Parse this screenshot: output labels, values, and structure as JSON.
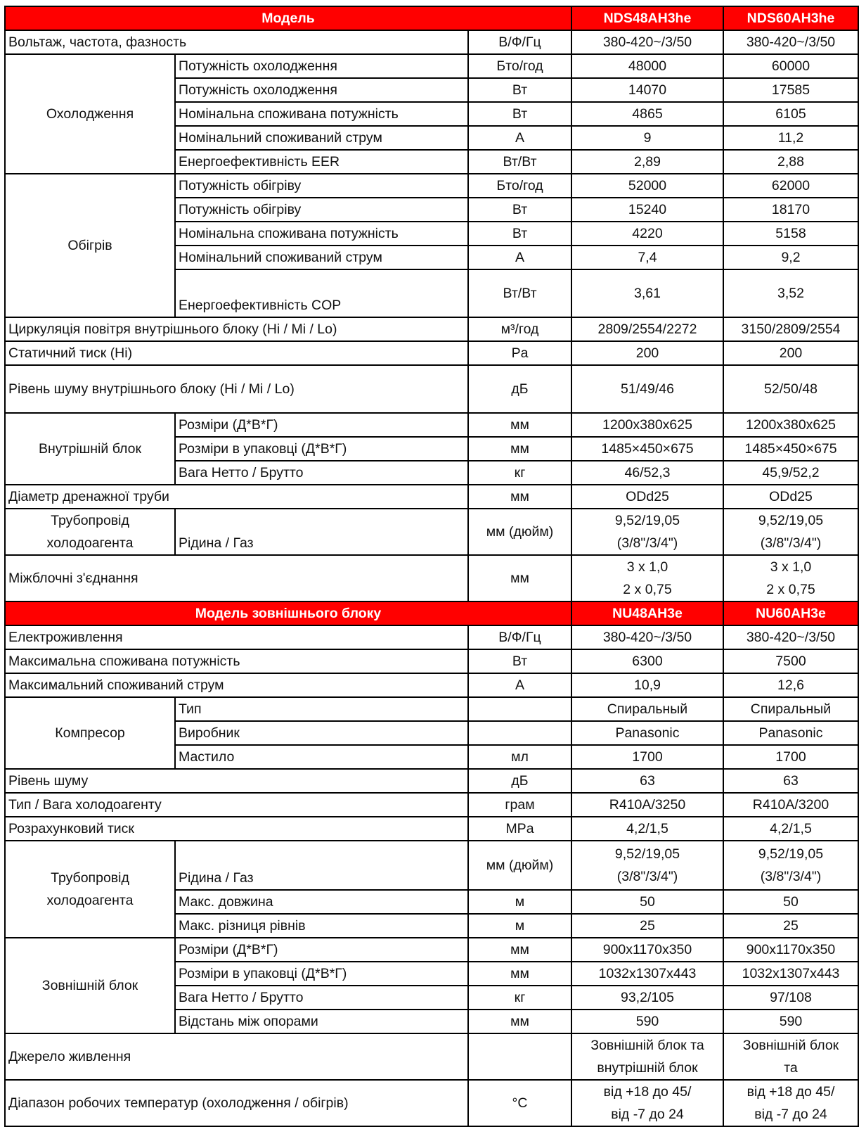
{
  "colors": {
    "header_bg": "#ff0000",
    "header_text": "#ffffff",
    "border": "#000000"
  },
  "sections": [
    {
      "header": {
        "label": "Модель",
        "models": [
          "NDS48AH3he",
          "NDS60AH3he"
        ]
      },
      "items": [
        {
          "param": "Вольтаж, частота, фазность",
          "unit": "В/Ф/Гц",
          "values": [
            "380-420~/3/50",
            "380-420~/3/50"
          ]
        },
        {
          "group": "Охолодження",
          "rows": [
            {
              "param": "Потужність охолодження",
              "unit": "Бто/год",
              "values": [
                "48000",
                "60000"
              ]
            },
            {
              "param": "Потужність охолодження",
              "unit": "Вт",
              "values": [
                "14070",
                "17585"
              ]
            },
            {
              "param": "Номінальна споживана потужність",
              "unit": "Вт",
              "values": [
                "4865",
                "6105"
              ]
            },
            {
              "param": "Номінальний споживаний струм",
              "unit": "А",
              "values": [
                "9",
                "11,2"
              ]
            },
            {
              "param": "Енергоефективність EER",
              "unit": "Вт/Вт",
              "values": [
                "2,89",
                "2,88"
              ]
            }
          ]
        },
        {
          "group": "Обігрів",
          "rows": [
            {
              "param": "Потужність обігріву",
              "unit": "Бто/год",
              "values": [
                "52000",
                "62000"
              ]
            },
            {
              "param": "Потужність обігріву",
              "unit": "Вт",
              "values": [
                "15240",
                "18170"
              ]
            },
            {
              "param": "Номінальна споживана потужність",
              "unit": "Вт",
              "values": [
                "4220",
                "5158"
              ]
            },
            {
              "param": "Номінальний споживаний струм",
              "unit": "А",
              "values": [
                "7,4",
                "9,2"
              ]
            },
            {
              "param": "Енергоефективність COP",
              "unit": "Вт/Вт",
              "values": [
                "3,61",
                "3,52"
              ]
            }
          ]
        },
        {
          "param": "Циркуляція повітря внутрішнього блоку (Hi / Mi / Lo)",
          "unit": "м³/год",
          "values": [
            "2809/2554/2272",
            "3150/2809/2554"
          ]
        },
        {
          "param": "Статичний тиск (Hi)",
          "unit": "Pa",
          "values": [
            "200",
            "200"
          ]
        },
        {
          "param": "Рівень шуму внутрішнього блоку (Hi / Mi / Lo)",
          "unit": "дБ",
          "values": [
            "51/49/46",
            "52/50/48"
          ]
        },
        {
          "group": "Внутрішній блок",
          "rows": [
            {
              "param": "Розміри (Д*В*Г)",
              "unit": "мм",
              "values": [
                "1200x380x625",
                "1200x380x625"
              ]
            },
            {
              "param": "Розміри в упаковці (Д*В*Г)",
              "unit": "мм",
              "values": [
                "1485×450×675",
                "1485×450×675"
              ]
            },
            {
              "param": "Вага Нетто / Брутто",
              "unit": "кг",
              "values": [
                "46/52,3",
                "45,9/52,2"
              ]
            }
          ]
        },
        {
          "param": "Діаметр дренажної труби",
          "unit": "мм",
          "values": [
            "ODd25",
            "ODd25"
          ]
        },
        {
          "group": "Трубопровід\nхолодоагента",
          "rows": [
            {
              "param": "Рідина / Газ",
              "unit": "мм (дюйм)",
              "values": [
                "9,52/19,05\n(3/8\"/3/4\")",
                "9,52/19,05\n(3/8\"/3/4\")"
              ]
            }
          ]
        },
        {
          "param": "Міжблочні з'єднання",
          "unit": "мм",
          "values": [
            "3 x 1,0\n2 x 0,75",
            "3 x 1,0\n2 x 0,75"
          ]
        }
      ]
    },
    {
      "header": {
        "label": "Модель зовнішнього блоку",
        "models": [
          "NU48AH3e",
          "NU60AH3e"
        ]
      },
      "items": [
        {
          "param": "Електроживлення",
          "unit": "В/Ф/Гц",
          "values": [
            "380-420~/3/50",
            "380-420~/3/50"
          ]
        },
        {
          "param": "Максимальна споживана потужність",
          "unit": "Вт",
          "values": [
            "6300",
            "7500"
          ]
        },
        {
          "param": "Максимальний споживаний струм",
          "unit": "А",
          "values": [
            "10,9",
            "12,6"
          ]
        },
        {
          "group": "Компресор",
          "rows": [
            {
              "param": "Тип",
              "unit": "",
              "values": [
                "Спиральный",
                "Спиральный"
              ]
            },
            {
              "param": "Виробник",
              "unit": "",
              "values": [
                "Panasonic",
                "Panasonic"
              ]
            },
            {
              "param": "Мастило",
              "unit": "мл",
              "values": [
                "1700",
                "1700"
              ]
            }
          ]
        },
        {
          "param": "Рівень шуму",
          "unit": "дБ",
          "values": [
            "63",
            "63"
          ]
        },
        {
          "param": "Тип / Вага холодоагенту",
          "unit": "грам",
          "values": [
            "R410A/3250",
            "R410A/3200"
          ]
        },
        {
          "param": "Розрахунковий тиск",
          "unit": "MPa",
          "values": [
            "4,2/1,5",
            "4,2/1,5"
          ]
        },
        {
          "group": "Трубопровід\nхолодоагента",
          "rows": [
            {
              "param": "Рідина / Газ",
              "unit": "мм (дюйм)",
              "values": [
                "9,52/19,05\n(3/8\"/3/4\")",
                "9,52/19,05\n(3/8\"/3/4\")"
              ]
            },
            {
              "param": "Макс. довжина",
              "unit": "м",
              "values": [
                "50",
                "50"
              ]
            },
            {
              "param": "Макс. різниця рівнів",
              "unit": "м",
              "values": [
                "25",
                "25"
              ]
            }
          ]
        },
        {
          "group": "Зовнішній блок",
          "rows": [
            {
              "param": "Розміри (Д*В*Г)",
              "unit": "мм",
              "values": [
                "900x1170x350",
                "900x1170x350"
              ]
            },
            {
              "param": "Розміри в упаковці (Д*В*Г)",
              "unit": "мм",
              "values": [
                "1032x1307x443",
                "1032x1307x443"
              ]
            },
            {
              "param": "Вага Нетто / Брутто",
              "unit": "кг",
              "values": [
                "93,2/105",
                "97/108"
              ]
            },
            {
              "param": "Відстань між опорами",
              "unit": "мм",
              "values": [
                "590",
                "590"
              ]
            }
          ]
        },
        {
          "param": "Джерело живлення",
          "unit": "",
          "values": [
            "Зовнішній блок та\nвнутрішній блок",
            "Зовнішній блок\nта"
          ]
        },
        {
          "param": "Діапазон робочих температур (охолодження / обігрів)",
          "unit": "°C",
          "values": [
            "від +18 до 45/\nвід -7 до 24",
            "від +18 до 45/\nвід -7 до 24"
          ]
        }
      ]
    }
  ]
}
